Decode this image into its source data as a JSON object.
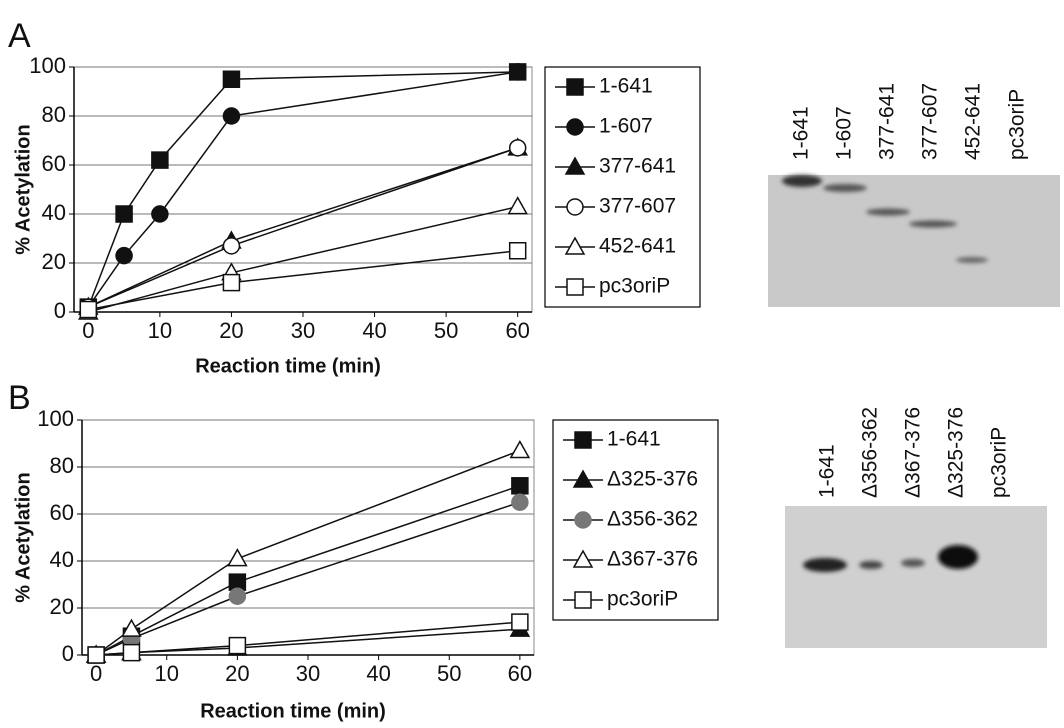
{
  "chart_data": [
    {
      "type": "line",
      "panel": "A",
      "ylabel": "% Acetylation",
      "xlabel": "Reaction time (min)",
      "xlim": [
        -2,
        62
      ],
      "xticks": [
        0,
        10,
        20,
        30,
        40,
        50,
        60
      ],
      "ylim": [
        0,
        100
      ],
      "yticks": [
        0,
        20,
        40,
        60,
        80,
        100
      ],
      "grid": true,
      "series": [
        {
          "name": "1-641",
          "color": "#111111",
          "marker": "square",
          "filled": true,
          "x": [
            0,
            5,
            10,
            20,
            60
          ],
          "values": [
            2,
            40,
            62,
            95,
            98
          ]
        },
        {
          "name": "1-607",
          "color": "#111111",
          "marker": "circle",
          "filled": true,
          "x": [
            0,
            5,
            10,
            20,
            60
          ],
          "values": [
            2,
            23,
            40,
            80,
            98
          ]
        },
        {
          "name": "377-641",
          "color": "#111111",
          "marker": "triangle",
          "filled": true,
          "x": [
            0,
            20,
            60
          ],
          "values": [
            2,
            29,
            67
          ]
        },
        {
          "name": "377-607",
          "color": "#111111",
          "marker": "circle",
          "filled": false,
          "x": [
            0,
            20,
            60
          ],
          "values": [
            2,
            27,
            67
          ]
        },
        {
          "name": "452-641",
          "color": "#111111",
          "marker": "triangle",
          "filled": false,
          "x": [
            0,
            20,
            60
          ],
          "values": [
            0,
            16,
            43
          ]
        },
        {
          "name": "pc3oriP",
          "color": "#111111",
          "marker": "square",
          "filled": false,
          "x": [
            0,
            20,
            60
          ],
          "values": [
            1,
            12,
            25
          ]
        }
      ]
    },
    {
      "type": "line",
      "panel": "B",
      "ylabel": "% Acetylation",
      "xlabel": "Reaction time (min)",
      "xlim": [
        -2,
        62
      ],
      "xticks": [
        0,
        10,
        20,
        30,
        40,
        50,
        60
      ],
      "ylim": [
        0,
        100
      ],
      "yticks": [
        0,
        20,
        40,
        60,
        80,
        100
      ],
      "grid": true,
      "series": [
        {
          "name": "1-641",
          "color": "#111111",
          "marker": "square",
          "filled": true,
          "x": [
            0,
            5,
            20,
            60
          ],
          "values": [
            0,
            8,
            31,
            72
          ]
        },
        {
          "name": "Δ325-376",
          "color": "#111111",
          "marker": "triangle",
          "filled": true,
          "x": [
            0,
            5,
            20,
            60
          ],
          "values": [
            0,
            1,
            3,
            11
          ]
        },
        {
          "name": "Δ356-362",
          "color": "#777777",
          "marker": "circle",
          "filled": true,
          "x": [
            0,
            5,
            20,
            60
          ],
          "values": [
            0,
            7,
            25,
            65
          ]
        },
        {
          "name": "Δ367-376",
          "color": "#111111",
          "marker": "triangle",
          "filled": false,
          "x": [
            0,
            5,
            20,
            60
          ],
          "values": [
            0,
            11,
            41,
            87
          ]
        },
        {
          "name": "pc3oriP",
          "color": "#111111",
          "marker": "square",
          "filled": false,
          "x": [
            0,
            5,
            20,
            60
          ],
          "values": [
            0,
            1,
            4,
            14
          ]
        }
      ]
    }
  ],
  "gels": [
    {
      "lanes": [
        "1-641",
        "1-607",
        "377-641",
        "377-607",
        "452-641",
        "pc3oriP"
      ]
    },
    {
      "lanes": [
        "1-641",
        "Δ356-362",
        "Δ367-376",
        "Δ325-376",
        "pc3oriP"
      ]
    }
  ]
}
